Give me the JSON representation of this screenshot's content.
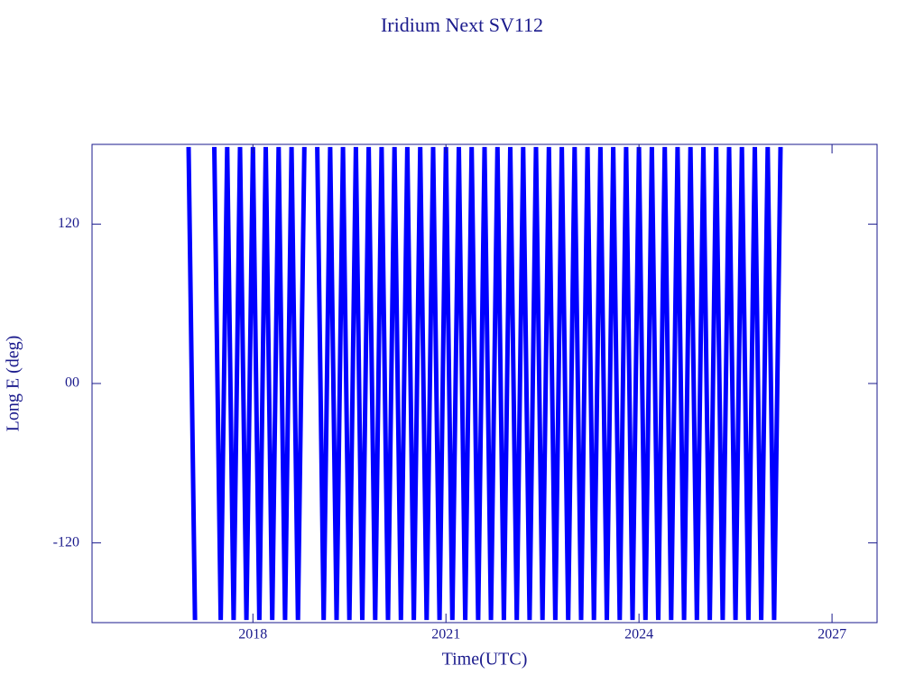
{
  "chart_data": {
    "type": "line",
    "title": "Iridium Next SV112",
    "x_label": "Time(UTC)",
    "y_label": "Long E (deg)",
    "color": "#0000ff",
    "axis_color": "#1a1a8c",
    "xlim": [
      2015.5,
      2027.7
    ],
    "xticks": [
      2018,
      2021,
      2024,
      2027
    ],
    "ylim": [
      -180,
      180
    ],
    "yticks": [
      -120,
      {
        "value": 0,
        "label": "00"
      },
      120
    ],
    "x": [
      2017,
      2017.1,
      2017.2,
      2017.3,
      2017.4,
      2017.5,
      2017.6,
      2017.7,
      2017.8,
      2017.9,
      2018,
      2018.1,
      2018.2,
      2018.3,
      2018.4,
      2018.5,
      2018.6,
      2018.7,
      2018.8,
      2018.9,
      2019,
      2019.1,
      2019.2,
      2019.3,
      2019.4,
      2019.5,
      2019.6,
      2019.7,
      2019.8,
      2019.9,
      2020,
      2020.1,
      2020.2,
      2020.3,
      2020.4,
      2020.5,
      2020.6,
      2020.7,
      2020.8,
      2020.9,
      2021,
      2021.1,
      2021.2,
      2021.3,
      2021.4,
      2021.5,
      2021.6,
      2021.7,
      2021.8,
      2021.9,
      2022,
      2022.1,
      2022.2,
      2022.3,
      2022.4,
      2022.5,
      2022.6,
      2022.7,
      2022.8,
      2022.9,
      2023,
      2023.1,
      2023.2,
      2023.3,
      2023.4,
      2023.5,
      2023.6,
      2023.7,
      2023.8,
      2023.9,
      2024,
      2024.1,
      2024.2,
      2024.3,
      2024.4,
      2024.5,
      2024.6,
      2024.7,
      2024.8,
      2024.9,
      2025,
      2025.1,
      2025.2,
      2025.3,
      2025.4,
      2025.5,
      2025.6,
      2025.7,
      2025.8,
      2025.9,
      2026,
      2026.1,
      2026.2
    ],
    "values": [
      178,
      -178,
      null,
      null,
      178,
      -178,
      178,
      -178,
      178,
      -178,
      178,
      -178,
      178,
      -178,
      178,
      -178,
      178,
      -178,
      178,
      null,
      178,
      -178,
      178,
      -178,
      178,
      -178,
      178,
      -178,
      178,
      -178,
      178,
      -178,
      178,
      -178,
      178,
      -178,
      178,
      -178,
      178,
      -178,
      178,
      -178,
      178,
      -178,
      178,
      -178,
      178,
      -178,
      178,
      -178,
      178,
      -178,
      178,
      -178,
      178,
      -178,
      178,
      -178,
      178,
      -178,
      178,
      -178,
      178,
      -178,
      178,
      -178,
      178,
      -178,
      178,
      -178,
      178,
      -178,
      178,
      -178,
      178,
      -178,
      178,
      -178,
      178,
      -178,
      178,
      -178,
      178,
      -178,
      178,
      -178,
      178,
      -178,
      178,
      -178,
      178,
      -178,
      178
    ]
  }
}
